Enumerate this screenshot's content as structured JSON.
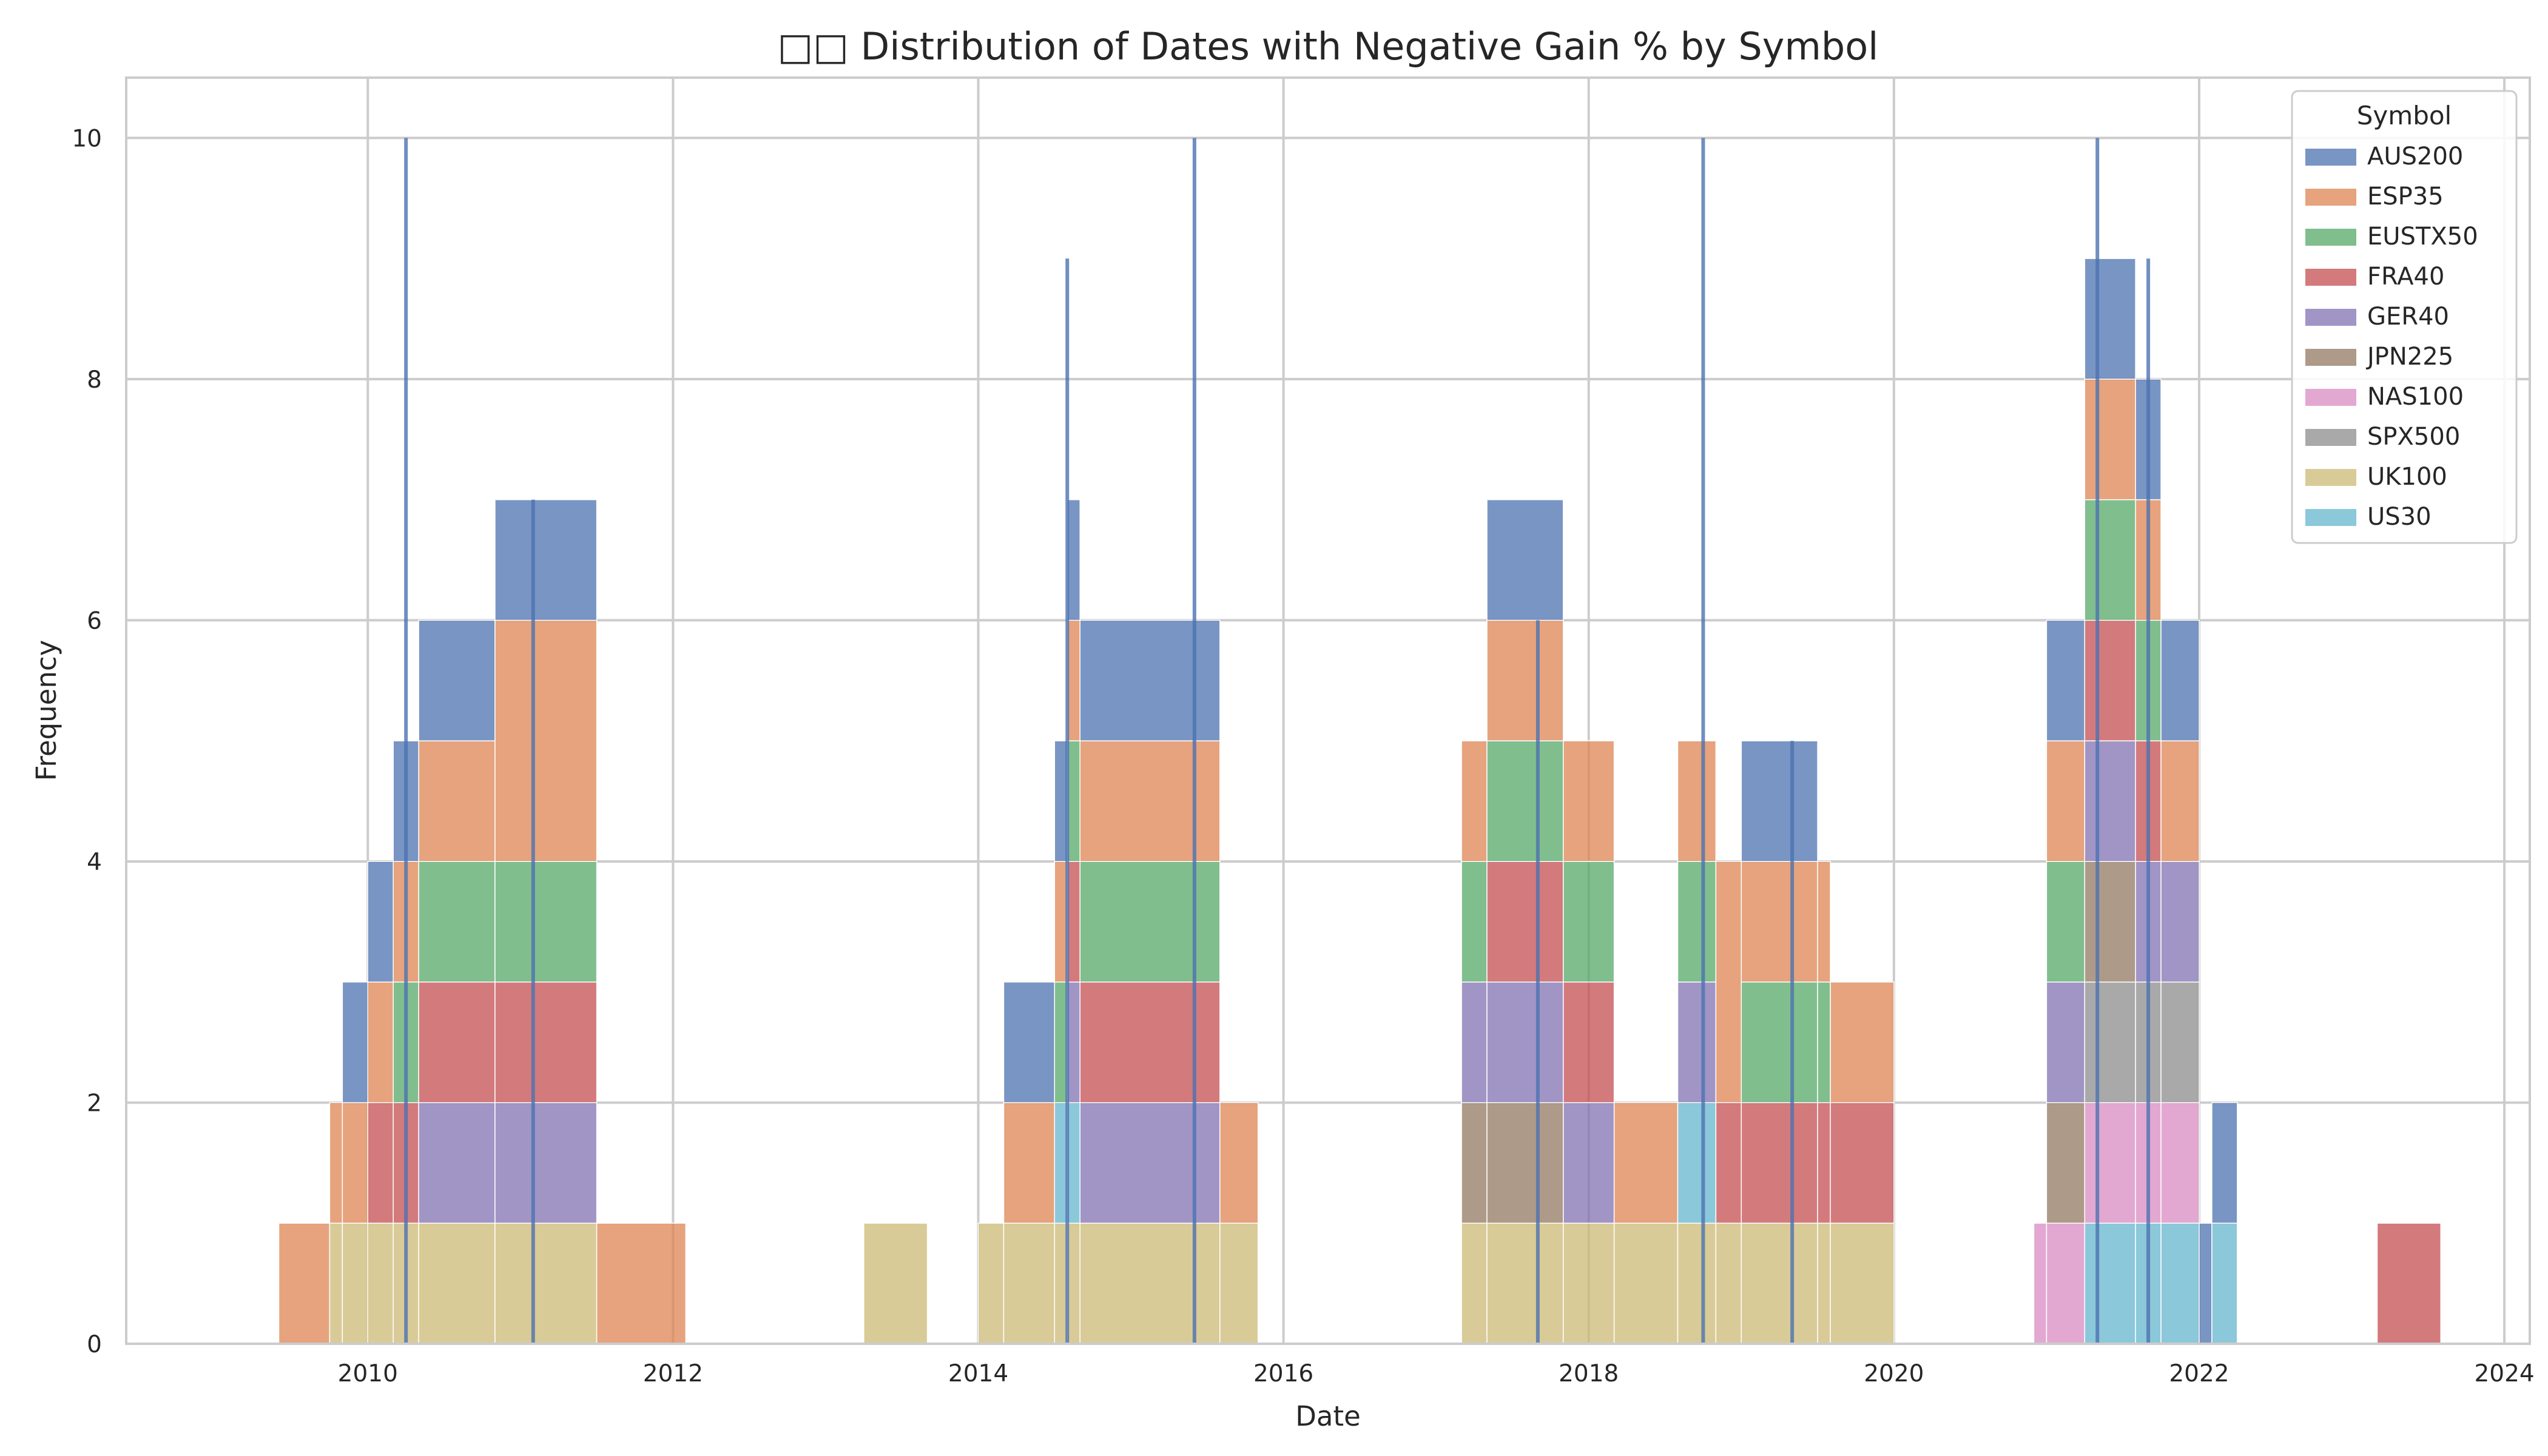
{
  "chart_data": {
    "type": "histogram",
    "title": "□□ Distribution of Dates with Negative Gain % by Symbol",
    "xlabel": "Date",
    "ylabel": "Frequency",
    "xlim": [
      "2008-06",
      "2024-03"
    ],
    "ylim": [
      0,
      10.5
    ],
    "x_ticks": [
      "2010",
      "2012",
      "2014",
      "2016",
      "2018",
      "2020",
      "2022",
      "2024"
    ],
    "y_ticks": [
      0,
      2,
      4,
      6,
      8,
      10
    ],
    "grid": true,
    "multiple": "stack",
    "legend": {
      "title": "Symbol",
      "position": "top-right",
      "entries": [
        "AUS200",
        "ESP35",
        "EUSTX50",
        "FRA40",
        "GER40",
        "JPN225",
        "NAS100",
        "SPX500",
        "UK100",
        "US30"
      ]
    },
    "series": [
      {
        "name": "UK100",
        "color": "#ccb974",
        "segments": [
          {
            "from": "2009-10",
            "to": "2011-07",
            "value": 1
          },
          {
            "from": "2013-04",
            "to": "2013-09",
            "value": 1
          },
          {
            "from": "2014-01",
            "to": "2015-11",
            "value": 1
          },
          {
            "from": "2017-03",
            "to": "2020-01",
            "value": 1
          }
        ]
      },
      {
        "name": "US30",
        "color": "#64b5cd",
        "segments": [
          {
            "from": "2014-07",
            "to": "2014-09",
            "value": 1
          },
          {
            "from": "2018-08",
            "to": "2018-11",
            "value": 1
          },
          {
            "from": "2021-04",
            "to": "2022-01",
            "value": 1
          },
          {
            "from": "2022-02",
            "to": "2022-04",
            "value": 1
          }
        ]
      },
      {
        "name": "NAS100",
        "color": "#da8bc3",
        "segments": [
          {
            "from": "2020-12",
            "to": "2021-04",
            "value": 1
          },
          {
            "from": "2021-04",
            "to": "2022-01",
            "value": 1
          }
        ]
      },
      {
        "name": "SPX500",
        "color": "#8c8c8c",
        "segments": [
          {
            "from": "2021-04",
            "to": "2022-01",
            "value": 1
          }
        ]
      },
      {
        "name": "JPN225",
        "color": "#937860",
        "segments": [
          {
            "from": "2017-03",
            "to": "2017-11",
            "value": 1
          },
          {
            "from": "2021-01",
            "to": "2021-08",
            "value": 1
          }
        ]
      },
      {
        "name": "GER40",
        "color": "#8172b3",
        "segments": [
          {
            "from": "2010-05",
            "to": "2010-11",
            "value": 1
          },
          {
            "from": "2010-11",
            "to": "2011-07",
            "value": 1
          },
          {
            "from": "2014-08",
            "to": "2015-08",
            "value": 1
          },
          {
            "from": "2017-03",
            "to": "2018-03",
            "value": 1
          },
          {
            "from": "2018-08",
            "to": "2018-11",
            "value": 1
          },
          {
            "from": "2021-01",
            "to": "2022-01",
            "value": 1
          }
        ]
      },
      {
        "name": "FRA40",
        "color": "#c44e52",
        "segments": [
          {
            "from": "2010-01",
            "to": "2010-11",
            "value": 1
          },
          {
            "from": "2010-11",
            "to": "2011-07",
            "value": 1
          },
          {
            "from": "2014-08",
            "to": "2015-08",
            "value": 1
          },
          {
            "from": "2017-05",
            "to": "2018-03",
            "value": 1
          },
          {
            "from": "2018-11",
            "to": "2020-01",
            "value": 1
          },
          {
            "from": "2021-04",
            "to": "2021-10",
            "value": 1
          },
          {
            "from": "2023-03",
            "to": "2023-08",
            "value": 1
          }
        ]
      },
      {
        "name": "EUSTX50",
        "color": "#55a868",
        "segments": [
          {
            "from": "2010-03",
            "to": "2010-11",
            "value": 1
          },
          {
            "from": "2010-11",
            "to": "2011-07",
            "value": 1
          },
          {
            "from": "2014-07",
            "to": "2015-08",
            "value": 1
          },
          {
            "from": "2017-03",
            "to": "2018-03",
            "value": 1
          },
          {
            "from": "2018-08",
            "to": "2018-11",
            "value": 1
          },
          {
            "from": "2019-01",
            "to": "2019-08",
            "value": 1
          },
          {
            "from": "2021-01",
            "to": "2021-10",
            "value": 1
          }
        ]
      },
      {
        "name": "ESP35",
        "color": "#dd8452",
        "segments": [
          {
            "from": "2009-06",
            "to": "2012-02",
            "value": 1
          },
          {
            "from": "2010-11",
            "to": "2011-07",
            "value": 1
          },
          {
            "from": "2014-03",
            "to": "2015-11",
            "value": 1
          },
          {
            "from": "2017-03",
            "to": "2019-01",
            "value": 1
          },
          {
            "from": "2018-11",
            "to": "2020-01",
            "value": 1
          },
          {
            "from": "2021-01",
            "to": "2022-01",
            "value": 1
          }
        ]
      },
      {
        "name": "AUS200",
        "color": "#4c72b0",
        "segments": [
          {
            "from": "2009-11",
            "to": "2010-11",
            "value": 1
          },
          {
            "from": "2010-11",
            "to": "2011-07",
            "value": 1
          },
          {
            "from": "2014-03",
            "to": "2015-08",
            "value": 1
          },
          {
            "from": "2017-05",
            "to": "2017-11",
            "value": 1
          },
          {
            "from": "2019-01",
            "to": "2019-07",
            "value": 1
          },
          {
            "from": "2021-01",
            "to": "2022-04",
            "value": 1
          }
        ]
      }
    ],
    "peaks": [
      {
        "date": "2010-04",
        "height": 10
      },
      {
        "date": "2011-02",
        "height": 7
      },
      {
        "date": "2014-08",
        "height": 9
      },
      {
        "date": "2015-06",
        "height": 10
      },
      {
        "date": "2017-09",
        "height": 6
      },
      {
        "date": "2018-10",
        "height": 10
      },
      {
        "date": "2019-05",
        "height": 5
      },
      {
        "date": "2021-05",
        "height": 10
      },
      {
        "date": "2021-09",
        "height": 9
      }
    ]
  }
}
